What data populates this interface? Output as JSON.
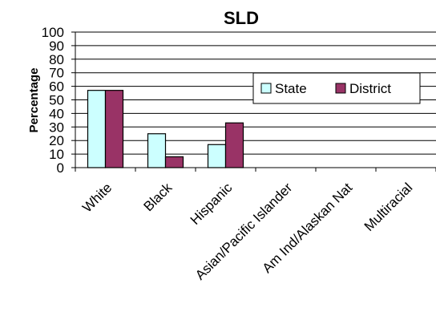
{
  "chart_data": {
    "type": "bar",
    "title": "SLD",
    "xlabel": "",
    "ylabel": "Percentage",
    "ylim": [
      0,
      100
    ],
    "yticks": [
      0,
      10,
      20,
      30,
      40,
      50,
      60,
      70,
      80,
      90,
      100
    ],
    "grid": true,
    "legend_position": "right",
    "categories": [
      "White",
      "Black",
      "Hispanic",
      "Asian/Pacific Islander",
      "Am Ind/Alaskan Nat",
      "Multiracial"
    ],
    "series": [
      {
        "name": "State",
        "color": "#ccffff",
        "values": [
          57,
          25,
          17,
          0,
          0,
          0
        ]
      },
      {
        "name": "District",
        "color": "#993366",
        "values": [
          57,
          8,
          33,
          0,
          0,
          0
        ]
      }
    ]
  }
}
